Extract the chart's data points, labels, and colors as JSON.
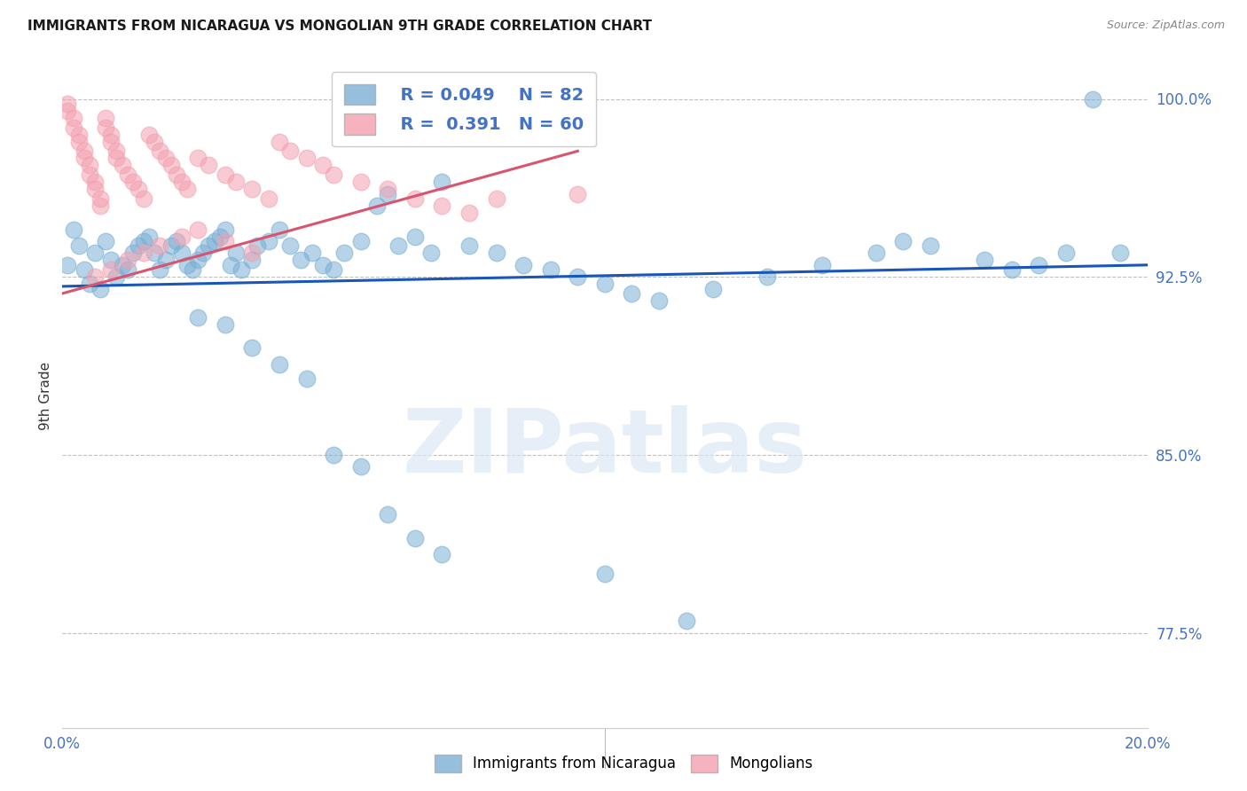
{
  "title": "IMMIGRANTS FROM NICARAGUA VS MONGOLIAN 9TH GRADE CORRELATION CHART",
  "source": "Source: ZipAtlas.com",
  "ylabel": "9th Grade",
  "xlim": [
    0.0,
    0.2
  ],
  "ylim": [
    0.735,
    1.015
  ],
  "yticks": [
    0.775,
    0.85,
    0.925,
    1.0
  ],
  "ytick_labels": [
    "77.5%",
    "85.0%",
    "92.5%",
    "100.0%"
  ],
  "legend_r1": "R = 0.049",
  "legend_n1": "N = 82",
  "legend_r2": "R =  0.391",
  "legend_n2": "N = 60",
  "blue_color": "#7bafd4",
  "pink_color": "#f4a0b0",
  "blue_line_color": "#1a56b8",
  "pink_line_color": "#d9546e",
  "axis_label_color": "#333333",
  "tick_color": "#4472c4",
  "grid_color": "#c0c0c0",
  "blue_scatter_x": [
    0.001,
    0.002,
    0.003,
    0.004,
    0.005,
    0.006,
    0.007,
    0.008,
    0.009,
    0.01,
    0.011,
    0.012,
    0.013,
    0.014,
    0.015,
    0.016,
    0.017,
    0.018,
    0.019,
    0.02,
    0.021,
    0.022,
    0.023,
    0.024,
    0.025,
    0.026,
    0.027,
    0.028,
    0.029,
    0.03,
    0.031,
    0.032,
    0.033,
    0.035,
    0.036,
    0.038,
    0.04,
    0.042,
    0.044,
    0.046,
    0.048,
    0.05,
    0.052,
    0.055,
    0.058,
    0.06,
    0.062,
    0.065,
    0.068,
    0.07,
    0.075,
    0.08,
    0.085,
    0.09,
    0.095,
    0.1,
    0.105,
    0.11,
    0.12,
    0.13,
    0.14,
    0.15,
    0.155,
    0.16,
    0.17,
    0.175,
    0.18,
    0.185,
    0.19,
    0.195,
    0.025,
    0.03,
    0.035,
    0.04,
    0.045,
    0.05,
    0.055,
    0.06,
    0.065,
    0.07,
    0.1,
    0.115
  ],
  "blue_scatter_y": [
    0.93,
    0.945,
    0.938,
    0.928,
    0.922,
    0.935,
    0.92,
    0.94,
    0.932,
    0.925,
    0.93,
    0.928,
    0.935,
    0.938,
    0.94,
    0.942,
    0.935,
    0.928,
    0.932,
    0.938,
    0.94,
    0.935,
    0.93,
    0.928,
    0.932,
    0.935,
    0.938,
    0.94,
    0.942,
    0.945,
    0.93,
    0.935,
    0.928,
    0.932,
    0.938,
    0.94,
    0.945,
    0.938,
    0.932,
    0.935,
    0.93,
    0.928,
    0.935,
    0.94,
    0.955,
    0.96,
    0.938,
    0.942,
    0.935,
    0.965,
    0.938,
    0.935,
    0.93,
    0.928,
    0.925,
    0.922,
    0.918,
    0.915,
    0.92,
    0.925,
    0.93,
    0.935,
    0.94,
    0.938,
    0.932,
    0.928,
    0.93,
    0.935,
    1.0,
    0.935,
    0.908,
    0.905,
    0.895,
    0.888,
    0.882,
    0.85,
    0.845,
    0.825,
    0.815,
    0.808,
    0.8,
    0.78
  ],
  "pink_scatter_x": [
    0.001,
    0.001,
    0.002,
    0.002,
    0.003,
    0.003,
    0.004,
    0.004,
    0.005,
    0.005,
    0.006,
    0.006,
    0.007,
    0.007,
    0.008,
    0.008,
    0.009,
    0.009,
    0.01,
    0.01,
    0.011,
    0.012,
    0.013,
    0.014,
    0.015,
    0.016,
    0.017,
    0.018,
    0.019,
    0.02,
    0.021,
    0.022,
    0.023,
    0.025,
    0.027,
    0.03,
    0.032,
    0.035,
    0.038,
    0.04,
    0.042,
    0.045,
    0.048,
    0.05,
    0.055,
    0.06,
    0.065,
    0.07,
    0.075,
    0.08,
    0.03,
    0.035,
    0.025,
    0.022,
    0.018,
    0.015,
    0.012,
    0.009,
    0.006,
    0.095
  ],
  "pink_scatter_y": [
    0.998,
    0.995,
    0.992,
    0.988,
    0.985,
    0.982,
    0.978,
    0.975,
    0.972,
    0.968,
    0.965,
    0.962,
    0.958,
    0.955,
    0.992,
    0.988,
    0.985,
    0.982,
    0.978,
    0.975,
    0.972,
    0.968,
    0.965,
    0.962,
    0.958,
    0.985,
    0.982,
    0.978,
    0.975,
    0.972,
    0.968,
    0.965,
    0.962,
    0.975,
    0.972,
    0.968,
    0.965,
    0.962,
    0.958,
    0.982,
    0.978,
    0.975,
    0.972,
    0.968,
    0.965,
    0.962,
    0.958,
    0.955,
    0.952,
    0.958,
    0.94,
    0.935,
    0.945,
    0.942,
    0.938,
    0.935,
    0.932,
    0.928,
    0.925,
    0.96
  ],
  "blue_trend_x": [
    0.0,
    0.2
  ],
  "blue_trend_y": [
    0.921,
    0.93
  ],
  "pink_trend_x": [
    0.0,
    0.095
  ],
  "pink_trend_y": [
    0.918,
    0.978
  ],
  "watermark": "ZIPatlas",
  "background_color": "#ffffff"
}
